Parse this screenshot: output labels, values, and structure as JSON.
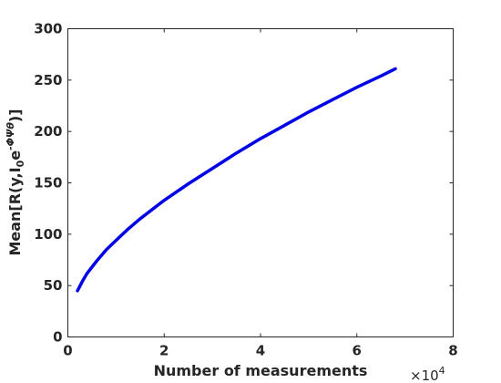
{
  "chart_data": {
    "type": "line",
    "xlabel": "Number of measurements",
    "x_multiplier": "×10",
    "x_multiplier_exp": "4",
    "ylabel": {
      "prefix": "Mean[R(y,I",
      "sub": "0",
      "mid": "e",
      "sup": "-ΦΨθ",
      "suffix": ")]"
    },
    "xlim": [
      0,
      8
    ],
    "ylim": [
      0,
      300
    ],
    "xticks": [
      "0",
      "2",
      "4",
      "6",
      "8"
    ],
    "yticks": [
      "0",
      "50",
      "100",
      "150",
      "200",
      "250",
      "300"
    ],
    "grid": false,
    "series": [
      {
        "color": "#0000e6",
        "x": [
          0.2,
          0.3,
          0.4,
          0.6,
          0.8,
          1.0,
          1.25,
          1.5,
          2.0,
          2.5,
          3.0,
          3.5,
          4.0,
          4.5,
          5.0,
          5.5,
          6.0,
          6.5,
          6.8
        ],
        "y": [
          45,
          54,
          62,
          74,
          85,
          94,
          105,
          115,
          133,
          149,
          164,
          179,
          193,
          206,
          219,
          231,
          243,
          254,
          261
        ]
      }
    ]
  }
}
